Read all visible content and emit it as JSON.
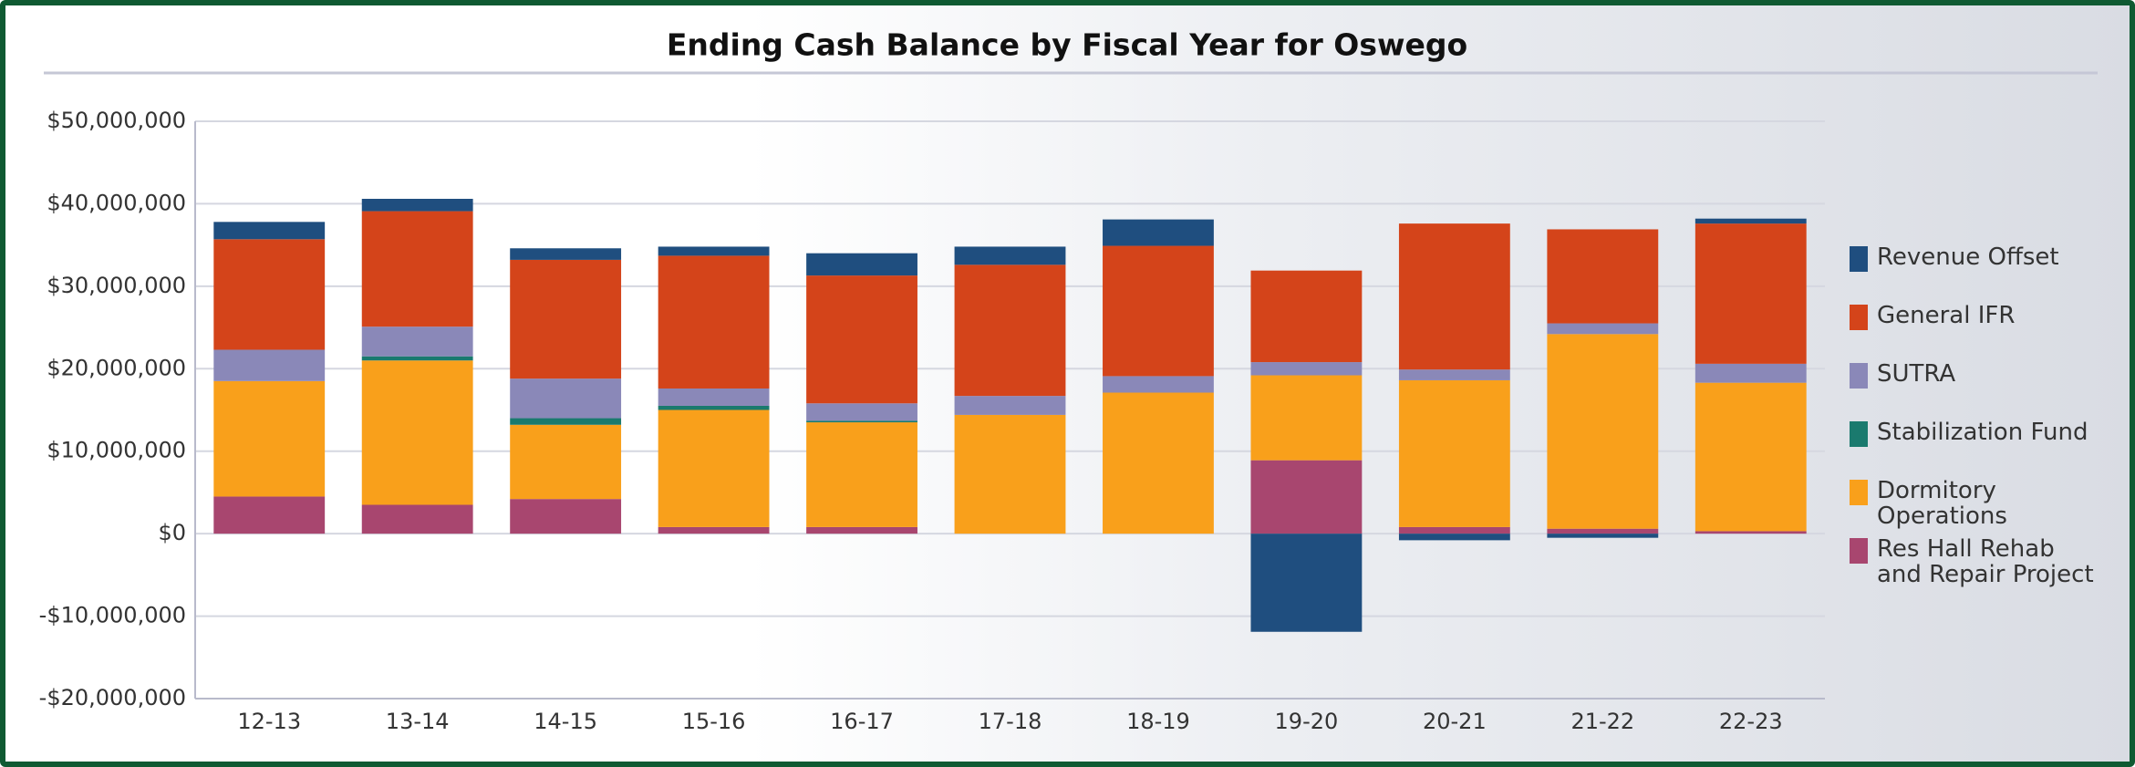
{
  "chart_data": {
    "type": "stacked_bar",
    "title": "Ending Cash Balance by Fiscal Year for Oswego",
    "categories": [
      "12-13",
      "13-14",
      "14-15",
      "15-16",
      "16-17",
      "17-18",
      "18-19",
      "19-20",
      "20-21",
      "21-22",
      "22-23"
    ],
    "series": [
      {
        "name": "Revenue Offset",
        "color": "#1f4e7f",
        "values": [
          2100000,
          1500000,
          1400000,
          1100000,
          2700000,
          2200000,
          3200000,
          -11900000,
          -800000,
          -500000,
          600000
        ]
      },
      {
        "name": "General IFR",
        "color": "#d4441a",
        "values": [
          13400000,
          14000000,
          14400000,
          16100000,
          15500000,
          15900000,
          15800000,
          11100000,
          17700000,
          11400000,
          17000000
        ]
      },
      {
        "name": "SUTRA",
        "color": "#8a88b8",
        "values": [
          3800000,
          3600000,
          4800000,
          2100000,
          2100000,
          2300000,
          2000000,
          1600000,
          1300000,
          1300000,
          2300000
        ]
      },
      {
        "name": "Stabilization Fund",
        "color": "#1a7a6e",
        "values": [
          0,
          500000,
          800000,
          500000,
          200000,
          0,
          0,
          0,
          0,
          0,
          0
        ]
      },
      {
        "name": "Dormitory Operations",
        "color": "#f9a01b",
        "values": [
          14000000,
          17500000,
          9000000,
          14200000,
          12700000,
          14400000,
          17100000,
          10300000,
          17800000,
          23600000,
          18000000
        ]
      },
      {
        "name": "Res Hall Rehab and Repair Project",
        "color": "#a8466f",
        "values": [
          4500000,
          3500000,
          4200000,
          800000,
          800000,
          0,
          0,
          8900000,
          800000,
          600000,
          300000
        ]
      }
    ],
    "ylim": [
      -20000000,
      50000000
    ],
    "yticks": [
      {
        "value": -20000000,
        "label": "-$20,000,000"
      },
      {
        "value": -10000000,
        "label": "-$10,000,000"
      },
      {
        "value": 0,
        "label": "$0"
      },
      {
        "value": 10000000,
        "label": "$10,000,000"
      },
      {
        "value": 20000000,
        "label": "$20,000,000"
      },
      {
        "value": 30000000,
        "label": "$30,000,000"
      },
      {
        "value": 40000000,
        "label": "$40,000,000"
      },
      {
        "value": 50000000,
        "label": "$50,000,000"
      }
    ],
    "grid": true,
    "legend": "right"
  }
}
